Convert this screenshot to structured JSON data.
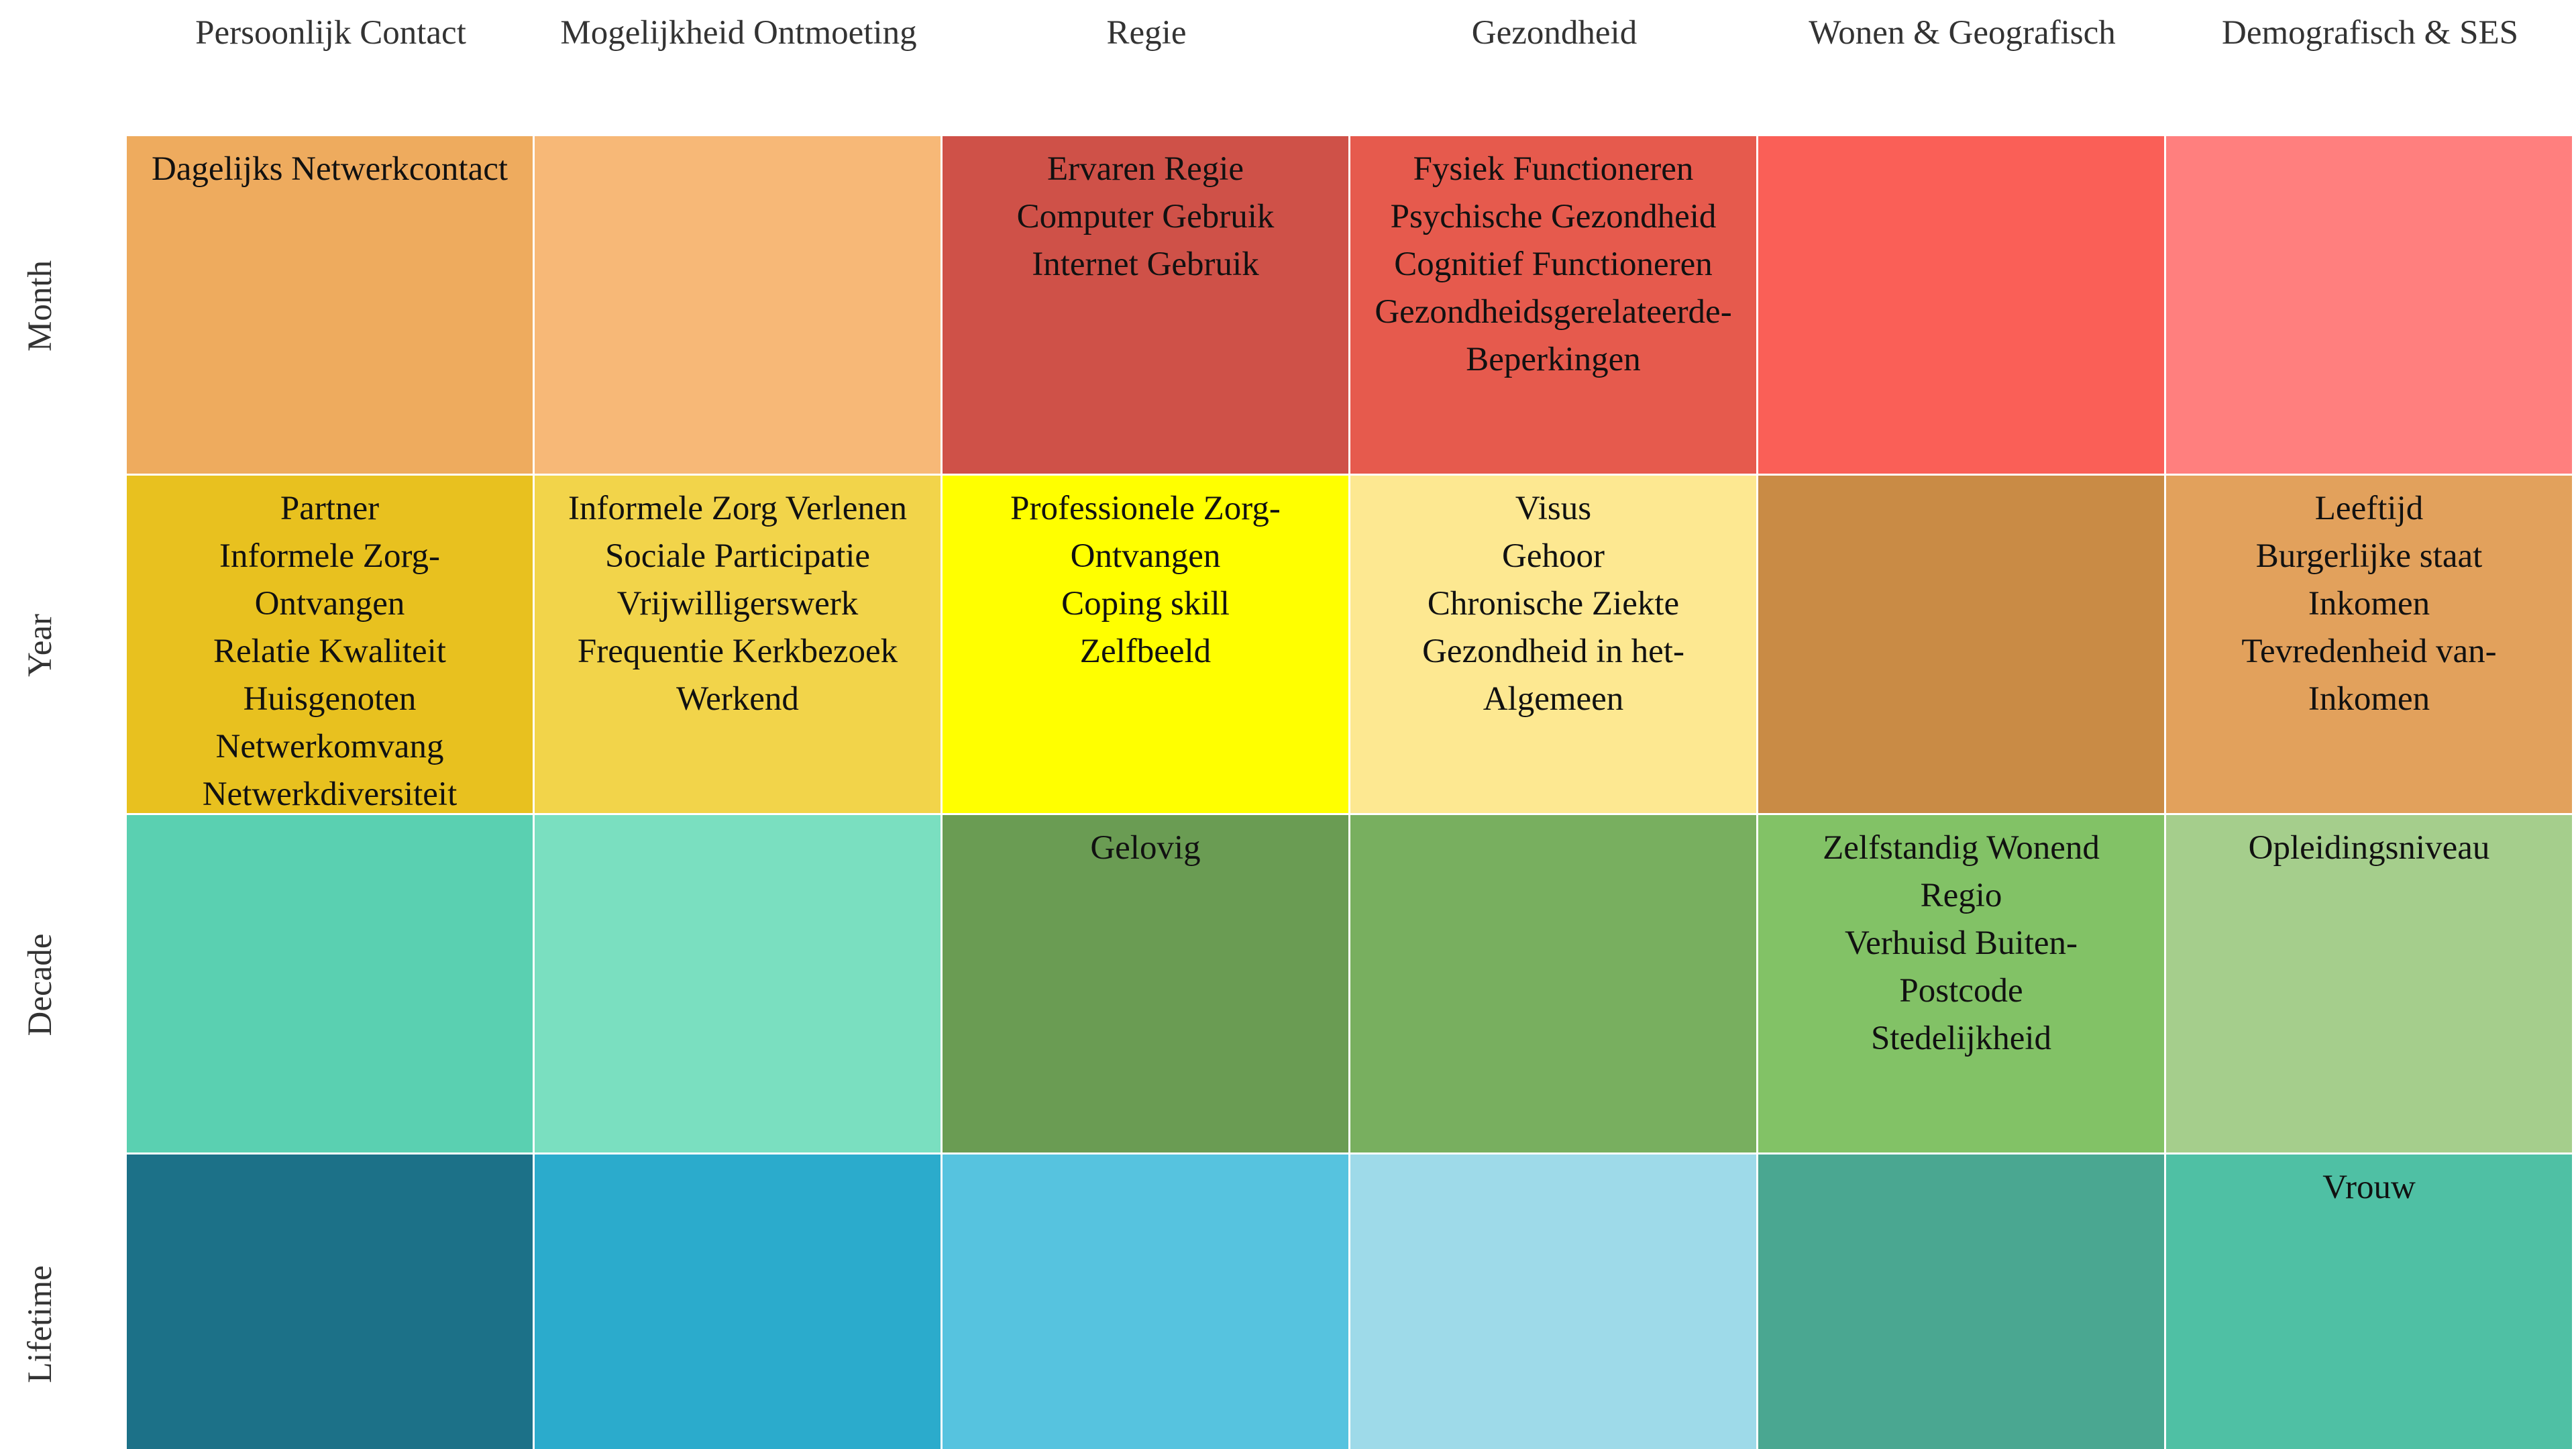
{
  "columns": [
    "Persoonlijk Contact",
    "Mogelijkheid Ontmoeting",
    "Regie",
    "Gezondheid",
    "Wonen & Geografisch",
    "Demografisch & SES"
  ],
  "rows": [
    "Month",
    "Year",
    "Decade",
    "Lifetime"
  ],
  "cells": [
    [
      {
        "color": "#EEAB5E",
        "items": [
          "Dagelijks Netwerkcontact"
        ]
      },
      {
        "color": "#F7B877",
        "items": []
      },
      {
        "color": "#CF5148",
        "items": [
          "Ervaren Regie",
          "Computer Gebruik",
          "Internet Gebruik"
        ]
      },
      {
        "color": "#E65A4D",
        "items": [
          "Fysiek Functioneren",
          "Psychische Gezondheid",
          "Cognitief Functioneren",
          "Gezondheidsgerelateerde-",
          "Beperkingen"
        ]
      },
      {
        "color": "#FA5F57",
        "items": []
      },
      {
        "color": "#FF7F7E",
        "items": []
      }
    ],
    [
      {
        "color": "#E8C11F",
        "items": [
          "Partner",
          "Informele Zorg-",
          "Ontvangen",
          "Relatie Kwaliteit",
          "Huisgenoten",
          "Netwerkomvang",
          "Netwerkdiversiteit"
        ]
      },
      {
        "color": "#F2D44A",
        "items": [
          "Informele Zorg Verlenen",
          "Sociale Participatie",
          "Vrijwilligerswerk",
          "Frequentie Kerkbezoek",
          "Werkend"
        ]
      },
      {
        "color": "#FFFF00",
        "items": [
          "Professionele Zorg-",
          "Ontvangen",
          "Coping skill",
          "Zelfbeeld"
        ]
      },
      {
        "color": "#FDE891",
        "items": [
          "Visus",
          "Gehoor",
          "Chronische Ziekte",
          "Gezondheid in het-",
          "Algemeen"
        ]
      },
      {
        "color": "#C98B45",
        "items": []
      },
      {
        "color": "#E2A15C",
        "items": [
          "Leeftijd",
          "Burgerlijke staat",
          "Inkomen",
          "Tevredenheid van-",
          "Inkomen"
        ]
      }
    ],
    [
      {
        "color": "#5AD0B1",
        "items": []
      },
      {
        "color": "#7ADFC0",
        "items": []
      },
      {
        "color": "#6A9C53",
        "items": [
          "Gelovig"
        ]
      },
      {
        "color": "#78AF5F",
        "items": []
      },
      {
        "color": "#82C266",
        "items": [
          "Zelfstandig Wonend",
          "Regio",
          "Verhuisd Buiten-",
          "Postcode",
          "Stedelijkheid"
        ]
      },
      {
        "color": "#A5CE8C",
        "items": [
          "Opleidingsniveau"
        ]
      }
    ],
    [
      {
        "color": "#1C7188",
        "items": []
      },
      {
        "color": "#2BABCC",
        "items": []
      },
      {
        "color": "#56C3DF",
        "items": []
      },
      {
        "color": "#9EDAE9",
        "items": []
      },
      {
        "color": "#4AA791",
        "items": []
      },
      {
        "color": "#4FC0A4",
        "items": [
          "Vrouw"
        ]
      }
    ]
  ]
}
